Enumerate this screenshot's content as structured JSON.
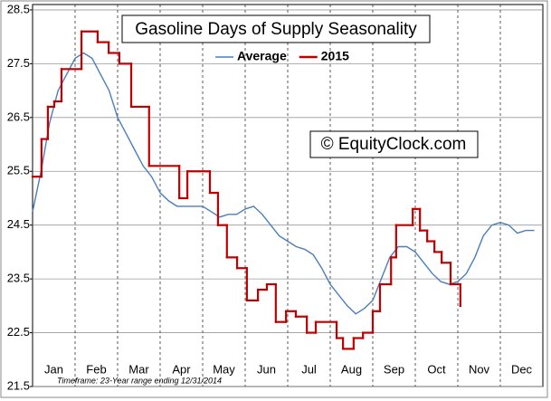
{
  "chart_data": {
    "type": "line",
    "title": "Gasoline Days of Supply Seasonality",
    "annotation": "© EquityClock.com",
    "footnote": "Timeframe: 23-Year range ending 12/31/2014",
    "categories": [
      "Jan",
      "Feb",
      "Mar",
      "Apr",
      "May",
      "Jun",
      "Jul",
      "Aug",
      "Sep",
      "Oct",
      "Nov",
      "Dec"
    ],
    "xlim": [
      0,
      12
    ],
    "ylim": [
      21.5,
      28.6
    ],
    "yticks": [
      21.5,
      22.5,
      23.5,
      24.5,
      25.5,
      26.5,
      27.5,
      28.5
    ],
    "grid": true,
    "series": [
      {
        "name": "Average",
        "color": "#4a7ebb",
        "step": false,
        "x": [
          0,
          0.2,
          0.4,
          0.6,
          0.8,
          1.0,
          1.2,
          1.4,
          1.6,
          1.8,
          2.0,
          2.2,
          2.4,
          2.6,
          2.8,
          3.0,
          3.2,
          3.4,
          3.6,
          3.8,
          4.0,
          4.2,
          4.4,
          4.6,
          4.8,
          5.0,
          5.2,
          5.4,
          5.6,
          5.8,
          6.0,
          6.2,
          6.4,
          6.6,
          6.8,
          7.0,
          7.2,
          7.4,
          7.6,
          7.8,
          8.0,
          8.2,
          8.4,
          8.6,
          8.8,
          9.0,
          9.2,
          9.4,
          9.6,
          9.8,
          10.0,
          10.2,
          10.4,
          10.6,
          10.8,
          11.0,
          11.2,
          11.4,
          11.6,
          11.8
        ],
        "values": [
          24.75,
          25.5,
          26.4,
          27.0,
          27.3,
          27.6,
          27.7,
          27.6,
          27.3,
          27.0,
          26.5,
          26.2,
          25.9,
          25.6,
          25.4,
          25.1,
          24.95,
          24.85,
          24.85,
          24.85,
          24.85,
          24.75,
          24.65,
          24.7,
          24.7,
          24.8,
          24.85,
          24.7,
          24.5,
          24.3,
          24.2,
          24.1,
          24.05,
          23.95,
          23.7,
          23.4,
          23.2,
          23.0,
          22.85,
          22.95,
          23.1,
          23.5,
          23.9,
          24.1,
          24.1,
          24.0,
          23.8,
          23.6,
          23.45,
          23.4,
          23.45,
          23.6,
          23.9,
          24.3,
          24.5,
          24.55,
          24.5,
          24.35,
          24.4,
          24.4
        ]
      },
      {
        "name": "2015",
        "color": "#c00000",
        "step": true,
        "x": [
          0,
          0.21,
          0.36,
          0.51,
          0.68,
          1.15,
          1.53,
          1.79,
          2.04,
          2.32,
          2.74,
          3.45,
          3.64,
          4.17,
          4.36,
          4.57,
          4.81,
          5.04,
          5.3,
          5.51,
          5.72,
          5.96,
          6.19,
          6.45,
          6.66,
          7.15,
          7.3,
          7.55,
          7.77,
          8.0,
          8.17,
          8.43,
          8.55,
          8.94,
          9.11,
          9.28,
          9.45,
          9.62,
          9.83,
          10.06
        ],
        "values": [
          25.4,
          26.1,
          26.7,
          26.8,
          27.4,
          28.1,
          27.9,
          27.7,
          27.5,
          26.7,
          25.6,
          25.0,
          25.5,
          25.1,
          24.5,
          23.9,
          23.7,
          23.1,
          23.3,
          23.4,
          22.7,
          22.9,
          22.8,
          22.5,
          22.7,
          22.4,
          22.2,
          22.4,
          22.5,
          22.9,
          23.4,
          23.9,
          24.5,
          24.8,
          24.4,
          24.2,
          24.0,
          23.8,
          23.4,
          23.0
        ]
      }
    ]
  }
}
